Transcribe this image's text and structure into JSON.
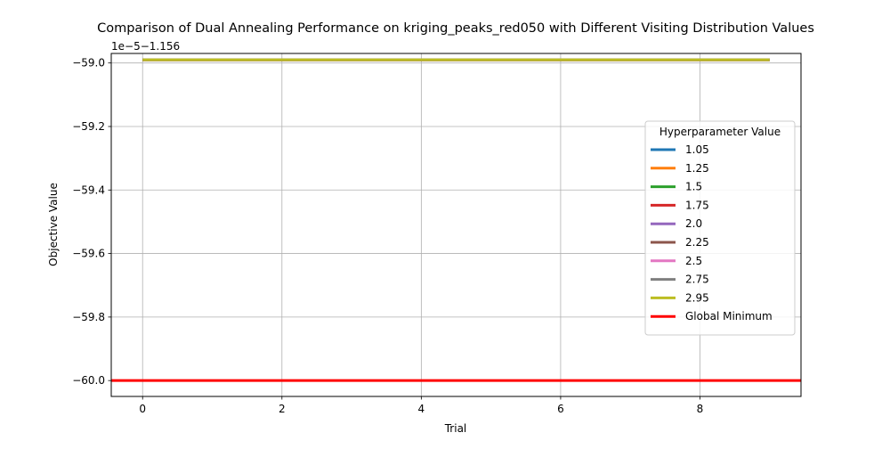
{
  "chart_data": {
    "type": "line",
    "title": "Comparison of Dual Annealing Performance on kriging_peaks_red050 with Different Visiting Distribution Values",
    "xlabel": "Trial",
    "ylabel": "Objective Value",
    "y_offset_text": "1e−5−1.156",
    "xlim": [
      -0.45,
      9.45
    ],
    "ylim": [
      -60.05,
      -58.97
    ],
    "x_ticks": [
      0,
      2,
      4,
      6,
      8
    ],
    "x_tick_labels": [
      "0",
      "2",
      "4",
      "6",
      "8"
    ],
    "y_ticks": [
      -60.0,
      -59.8,
      -59.6,
      -59.4,
      -59.2,
      -59.0
    ],
    "y_tick_labels": [
      "−60.0",
      "−59.8",
      "−59.6",
      "−59.4",
      "−59.2",
      "−59.0"
    ],
    "grid": true,
    "legend": {
      "title": "Hyperparameter Value",
      "placement": "center-right"
    },
    "x": [
      0,
      1,
      2,
      3,
      4,
      5,
      6,
      7,
      8,
      9
    ],
    "series": [
      {
        "name": "1.05",
        "color": "#1f77b4",
        "values": [
          -58.99,
          -58.99,
          -58.99,
          -58.99,
          -58.99,
          -58.99,
          -58.99,
          -58.99,
          -58.99,
          -58.99
        ]
      },
      {
        "name": "1.25",
        "color": "#ff7f0e",
        "values": [
          -58.99,
          -58.99,
          -58.99,
          -58.99,
          -58.99,
          -58.99,
          -58.99,
          -58.99,
          -58.99,
          -58.99
        ]
      },
      {
        "name": "1.5",
        "color": "#2ca02c",
        "values": [
          -58.99,
          -58.99,
          -58.99,
          -58.99,
          -58.99,
          -58.99,
          -58.99,
          -58.99,
          -58.99,
          -58.99
        ]
      },
      {
        "name": "1.75",
        "color": "#d62728",
        "values": [
          -58.99,
          -58.99,
          -58.99,
          -58.99,
          -58.99,
          -58.99,
          -58.99,
          -58.99,
          -58.99,
          -58.99
        ]
      },
      {
        "name": "2.0",
        "color": "#9467bd",
        "values": [
          -58.99,
          -58.99,
          -58.99,
          -58.99,
          -58.99,
          -58.99,
          -58.99,
          -58.99,
          -58.99,
          -58.99
        ]
      },
      {
        "name": "2.25",
        "color": "#8c564b",
        "values": [
          -58.99,
          -58.99,
          -58.99,
          -58.99,
          -58.99,
          -58.99,
          -58.99,
          -58.99,
          -58.99,
          -58.99
        ]
      },
      {
        "name": "2.5",
        "color": "#e377c2",
        "values": [
          -58.99,
          -58.99,
          -58.99,
          -58.99,
          -58.99,
          -58.99,
          -58.99,
          -58.99,
          -58.99,
          -58.99
        ]
      },
      {
        "name": "2.75",
        "color": "#7f7f7f",
        "values": [
          -58.99,
          -58.99,
          -58.99,
          -58.99,
          -58.99,
          -58.99,
          -58.99,
          -58.99,
          -58.99,
          -58.99
        ]
      },
      {
        "name": "2.95",
        "color": "#bcbd22",
        "values": [
          -58.99,
          -58.99,
          -58.99,
          -58.99,
          -58.99,
          -58.99,
          -58.99,
          -58.99,
          -58.99,
          -58.99
        ]
      }
    ],
    "hline": {
      "name": "Global Minimum",
      "color": "#ff0000",
      "value": -60.0
    }
  }
}
